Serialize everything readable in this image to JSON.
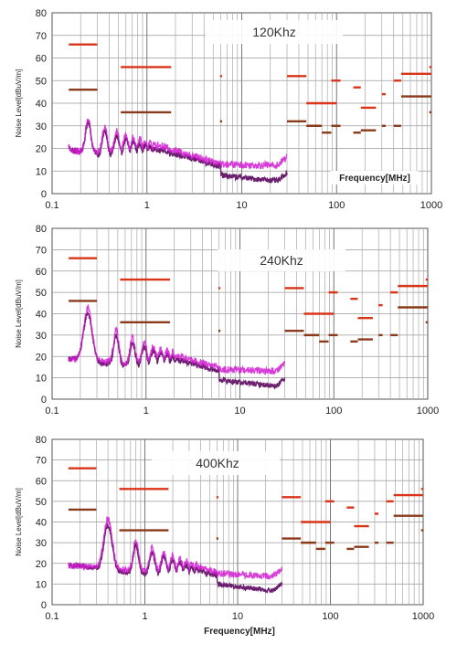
{
  "chart_data": [
    {
      "type": "line",
      "title": "120Khz",
      "ylabel": "Noise Level[dBuV/m]",
      "xlabel": "Frequency[MHz]",
      "xscale": "log",
      "xlim": [
        0.1,
        1000
      ],
      "ylim": [
        0,
        80
      ],
      "yticks": [
        0,
        10,
        20,
        30,
        40,
        50,
        60,
        70,
        80
      ],
      "xticks": [
        "0.1",
        "1",
        "10",
        "100",
        "1000"
      ],
      "grid": true,
      "switching_frequency_mhz": 0.12,
      "colors": {
        "line_a": "#6b1f6e",
        "line_b": "#d21bd2",
        "limit": "#d93418",
        "limit_avg": "#8a3a1a"
      },
      "limit_lines": [
        {
          "x": [
            0.15,
            0.3
          ],
          "y": 66,
          "kind": "limit"
        },
        {
          "x": [
            0.15,
            0.3
          ],
          "y": 46,
          "kind": "avg"
        },
        {
          "x": [
            0.53,
            1.8
          ],
          "y": 56,
          "kind": "limit"
        },
        {
          "x": [
            0.53,
            1.8
          ],
          "y": 36,
          "kind": "avg"
        },
        {
          "x": [
            5.9,
            6.2
          ],
          "y": 52,
          "kind": "limit"
        },
        {
          "x": [
            5.9,
            6.2
          ],
          "y": 32,
          "kind": "avg"
        },
        {
          "x": [
            30,
            48
          ],
          "y": 52,
          "kind": "limit"
        },
        {
          "x": [
            30,
            48
          ],
          "y": 32,
          "kind": "avg"
        },
        {
          "x": [
            48,
            100
          ],
          "y": 40,
          "kind": "limit"
        },
        {
          "x": [
            48,
            70
          ],
          "y": 30,
          "kind": "avg"
        },
        {
          "x": [
            70,
            88
          ],
          "y": 27,
          "kind": "avg"
        },
        {
          "x": [
            88,
            110
          ],
          "y": 50,
          "kind": "limit"
        },
        {
          "x": [
            88,
            110
          ],
          "y": 30,
          "kind": "avg"
        },
        {
          "x": [
            150,
            180
          ],
          "y": 47,
          "kind": "limit"
        },
        {
          "x": [
            150,
            180
          ],
          "y": 27,
          "kind": "avg"
        },
        {
          "x": [
            180,
            260
          ],
          "y": 38,
          "kind": "limit"
        },
        {
          "x": [
            180,
            260
          ],
          "y": 28,
          "kind": "avg"
        },
        {
          "x": [
            300,
            330
          ],
          "y": 44,
          "kind": "limit"
        },
        {
          "x": [
            300,
            330
          ],
          "y": 30,
          "kind": "avg"
        },
        {
          "x": [
            400,
            480
          ],
          "y": 50,
          "kind": "limit"
        },
        {
          "x": [
            400,
            480
          ],
          "y": 30,
          "kind": "avg"
        },
        {
          "x": [
            480,
            1000
          ],
          "y": 53,
          "kind": "limit"
        },
        {
          "x": [
            480,
            1000
          ],
          "y": 43,
          "kind": "avg"
        },
        {
          "x": [
            950,
            1000
          ],
          "y": 56,
          "kind": "limit"
        },
        {
          "x": [
            950,
            1000
          ],
          "y": 36,
          "kind": "avg"
        }
      ]
    },
    {
      "type": "line",
      "title": "240Khz",
      "ylabel": "Noise Level[dBuV/m]",
      "xlabel": "",
      "xscale": "log",
      "xlim": [
        0.1,
        1000
      ],
      "ylim": [
        0,
        80
      ],
      "yticks": [
        0,
        10,
        20,
        30,
        40,
        50,
        60,
        70,
        80
      ],
      "xticks": [
        "0.1",
        "1",
        "10",
        "100",
        "1000"
      ],
      "grid": true,
      "switching_frequency_mhz": 0.24,
      "colors": {
        "line_a": "#6b1f6e",
        "line_b": "#d21bd2",
        "limit": "#d93418",
        "limit_avg": "#8a3a1a"
      },
      "limit_lines": [
        {
          "x": [
            0.15,
            0.3
          ],
          "y": 66,
          "kind": "limit"
        },
        {
          "x": [
            0.15,
            0.3
          ],
          "y": 46,
          "kind": "avg"
        },
        {
          "x": [
            0.53,
            1.8
          ],
          "y": 56,
          "kind": "limit"
        },
        {
          "x": [
            0.53,
            1.8
          ],
          "y": 36,
          "kind": "avg"
        },
        {
          "x": [
            5.9,
            6.2
          ],
          "y": 52,
          "kind": "limit"
        },
        {
          "x": [
            5.9,
            6.2
          ],
          "y": 32,
          "kind": "avg"
        },
        {
          "x": [
            30,
            48
          ],
          "y": 52,
          "kind": "limit"
        },
        {
          "x": [
            30,
            48
          ],
          "y": 32,
          "kind": "avg"
        },
        {
          "x": [
            48,
            100
          ],
          "y": 40,
          "kind": "limit"
        },
        {
          "x": [
            48,
            70
          ],
          "y": 30,
          "kind": "avg"
        },
        {
          "x": [
            70,
            88
          ],
          "y": 27,
          "kind": "avg"
        },
        {
          "x": [
            88,
            110
          ],
          "y": 50,
          "kind": "limit"
        },
        {
          "x": [
            88,
            110
          ],
          "y": 30,
          "kind": "avg"
        },
        {
          "x": [
            150,
            180
          ],
          "y": 47,
          "kind": "limit"
        },
        {
          "x": [
            150,
            180
          ],
          "y": 27,
          "kind": "avg"
        },
        {
          "x": [
            180,
            260
          ],
          "y": 38,
          "kind": "limit"
        },
        {
          "x": [
            180,
            260
          ],
          "y": 28,
          "kind": "avg"
        },
        {
          "x": [
            300,
            330
          ],
          "y": 44,
          "kind": "limit"
        },
        {
          "x": [
            300,
            330
          ],
          "y": 30,
          "kind": "avg"
        },
        {
          "x": [
            400,
            480
          ],
          "y": 50,
          "kind": "limit"
        },
        {
          "x": [
            400,
            480
          ],
          "y": 30,
          "kind": "avg"
        },
        {
          "x": [
            480,
            1000
          ],
          "y": 53,
          "kind": "limit"
        },
        {
          "x": [
            480,
            1000
          ],
          "y": 43,
          "kind": "avg"
        },
        {
          "x": [
            950,
            1000
          ],
          "y": 56,
          "kind": "limit"
        },
        {
          "x": [
            950,
            1000
          ],
          "y": 36,
          "kind": "avg"
        }
      ]
    },
    {
      "type": "line",
      "title": "400Khz",
      "ylabel": "Noise Level[dBuV/m]",
      "xlabel": "Frequency[MHz]",
      "xscale": "log",
      "xlim": [
        0.1,
        1000
      ],
      "ylim": [
        0,
        80
      ],
      "yticks": [
        0,
        10,
        20,
        30,
        40,
        50,
        60,
        70,
        80
      ],
      "xticks": [
        "0.1",
        "1",
        "10",
        "100",
        "1000"
      ],
      "grid": true,
      "switching_frequency_mhz": 0.4,
      "colors": {
        "line_a": "#6b1f6e",
        "line_b": "#d21bd2",
        "limit": "#d93418",
        "limit_avg": "#8a3a1a"
      },
      "limit_lines": [
        {
          "x": [
            0.15,
            0.3
          ],
          "y": 66,
          "kind": "limit"
        },
        {
          "x": [
            0.15,
            0.3
          ],
          "y": 46,
          "kind": "avg"
        },
        {
          "x": [
            0.53,
            1.8
          ],
          "y": 56,
          "kind": "limit"
        },
        {
          "x": [
            0.53,
            1.8
          ],
          "y": 36,
          "kind": "avg"
        },
        {
          "x": [
            5.9,
            6.2
          ],
          "y": 52,
          "kind": "limit"
        },
        {
          "x": [
            5.9,
            6.2
          ],
          "y": 32,
          "kind": "avg"
        },
        {
          "x": [
            30,
            48
          ],
          "y": 52,
          "kind": "limit"
        },
        {
          "x": [
            30,
            48
          ],
          "y": 32,
          "kind": "avg"
        },
        {
          "x": [
            48,
            100
          ],
          "y": 40,
          "kind": "limit"
        },
        {
          "x": [
            48,
            70
          ],
          "y": 30,
          "kind": "avg"
        },
        {
          "x": [
            70,
            88
          ],
          "y": 27,
          "kind": "avg"
        },
        {
          "x": [
            88,
            110
          ],
          "y": 50,
          "kind": "limit"
        },
        {
          "x": [
            88,
            110
          ],
          "y": 30,
          "kind": "avg"
        },
        {
          "x": [
            150,
            180
          ],
          "y": 47,
          "kind": "limit"
        },
        {
          "x": [
            150,
            180
          ],
          "y": 27,
          "kind": "avg"
        },
        {
          "x": [
            180,
            260
          ],
          "y": 38,
          "kind": "limit"
        },
        {
          "x": [
            180,
            260
          ],
          "y": 28,
          "kind": "avg"
        },
        {
          "x": [
            300,
            330
          ],
          "y": 44,
          "kind": "limit"
        },
        {
          "x": [
            300,
            330
          ],
          "y": 30,
          "kind": "avg"
        },
        {
          "x": [
            400,
            480
          ],
          "y": 50,
          "kind": "limit"
        },
        {
          "x": [
            400,
            480
          ],
          "y": 30,
          "kind": "avg"
        },
        {
          "x": [
            480,
            1000
          ],
          "y": 53,
          "kind": "limit"
        },
        {
          "x": [
            480,
            1000
          ],
          "y": 43,
          "kind": "avg"
        },
        {
          "x": [
            950,
            1000
          ],
          "y": 56,
          "kind": "limit"
        },
        {
          "x": [
            950,
            1000
          ],
          "y": 36,
          "kind": "avg"
        }
      ]
    }
  ]
}
